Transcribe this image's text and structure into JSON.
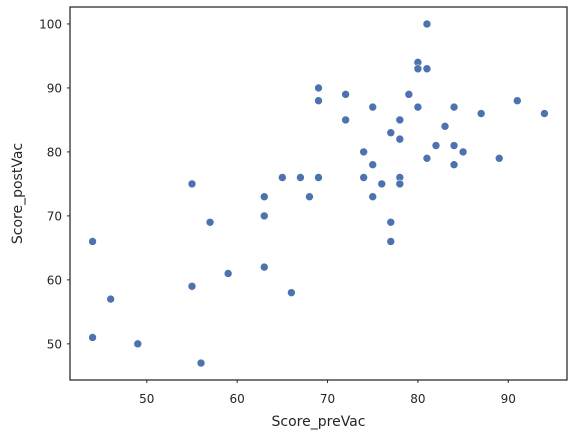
{
  "chart_data": {
    "type": "scatter",
    "title": "",
    "xlabel": "Score_preVac",
    "ylabel": "Score_postVac",
    "xlim": [
      41.5,
      96.5
    ],
    "ylim": [
      44.35,
      102.65
    ],
    "xticks": [
      50,
      60,
      70,
      80,
      90
    ],
    "yticks": [
      50,
      60,
      70,
      80,
      90,
      100
    ],
    "grid": false,
    "marker_color": "#4c72b0",
    "points": [
      {
        "x": 44,
        "y": 66
      },
      {
        "x": 44,
        "y": 51
      },
      {
        "x": 46,
        "y": 57
      },
      {
        "x": 49,
        "y": 50
      },
      {
        "x": 55,
        "y": 75
      },
      {
        "x": 55,
        "y": 59
      },
      {
        "x": 56,
        "y": 47
      },
      {
        "x": 57,
        "y": 69
      },
      {
        "x": 59,
        "y": 61
      },
      {
        "x": 63,
        "y": 73
      },
      {
        "x": 63,
        "y": 70
      },
      {
        "x": 63,
        "y": 62
      },
      {
        "x": 65,
        "y": 76
      },
      {
        "x": 66,
        "y": 58
      },
      {
        "x": 67,
        "y": 76
      },
      {
        "x": 68,
        "y": 73
      },
      {
        "x": 69,
        "y": 90
      },
      {
        "x": 69,
        "y": 88
      },
      {
        "x": 69,
        "y": 76
      },
      {
        "x": 72,
        "y": 89
      },
      {
        "x": 72,
        "y": 85
      },
      {
        "x": 74,
        "y": 80
      },
      {
        "x": 74,
        "y": 76
      },
      {
        "x": 75,
        "y": 87
      },
      {
        "x": 75,
        "y": 78
      },
      {
        "x": 75,
        "y": 73
      },
      {
        "x": 76,
        "y": 75
      },
      {
        "x": 77,
        "y": 83
      },
      {
        "x": 77,
        "y": 69
      },
      {
        "x": 77,
        "y": 66
      },
      {
        "x": 78,
        "y": 85
      },
      {
        "x": 78,
        "y": 82
      },
      {
        "x": 78,
        "y": 76
      },
      {
        "x": 78,
        "y": 75
      },
      {
        "x": 79,
        "y": 89
      },
      {
        "x": 80,
        "y": 94
      },
      {
        "x": 80,
        "y": 93
      },
      {
        "x": 80,
        "y": 87
      },
      {
        "x": 81,
        "y": 100
      },
      {
        "x": 81,
        "y": 93
      },
      {
        "x": 81,
        "y": 79
      },
      {
        "x": 82,
        "y": 81
      },
      {
        "x": 83,
        "y": 84
      },
      {
        "x": 84,
        "y": 87
      },
      {
        "x": 84,
        "y": 81
      },
      {
        "x": 84,
        "y": 78
      },
      {
        "x": 85,
        "y": 80
      },
      {
        "x": 87,
        "y": 86
      },
      {
        "x": 89,
        "y": 79
      },
      {
        "x": 91,
        "y": 88
      },
      {
        "x": 94,
        "y": 86
      }
    ]
  }
}
